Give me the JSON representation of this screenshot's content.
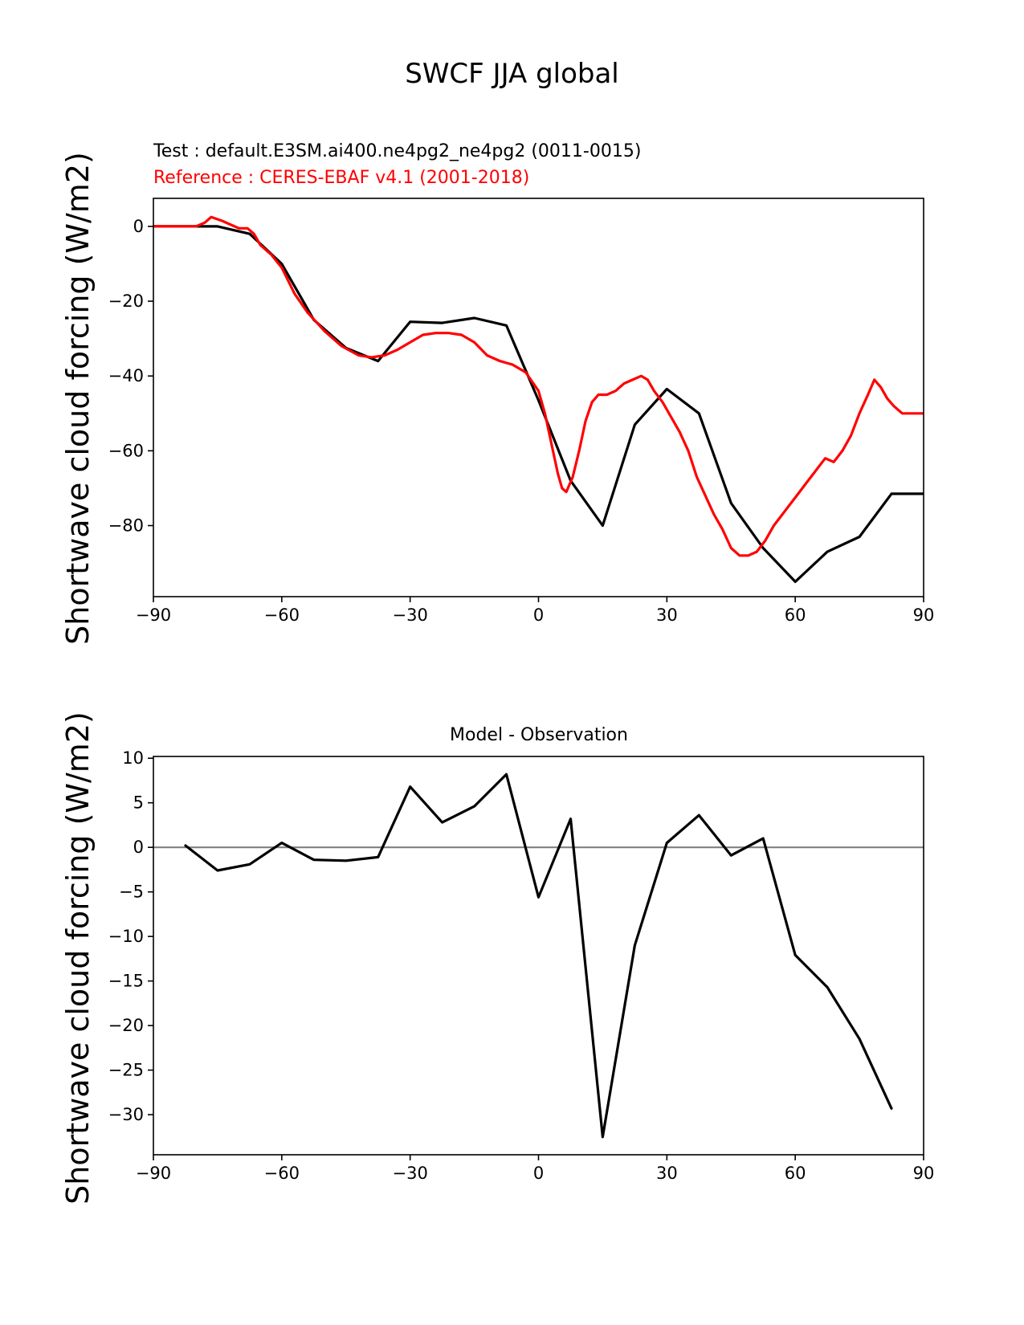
{
  "figure": {
    "title": "SWCF JJA global"
  },
  "chart_data": [
    {
      "type": "line",
      "test_label": "Test : default.E3SM.ai400.ne4pg2_ne4pg2 (0011-0015)",
      "reference_label": "Reference : CERES-EBAF v4.1 (2001-2018)",
      "ylabel": "Shortwave cloud forcing (W/m2)",
      "xlim": [
        -90,
        90
      ],
      "ylim": [
        -99,
        7.5
      ],
      "xticks": [
        -90,
        -60,
        -30,
        0,
        30,
        60,
        90
      ],
      "yticks": [
        -80,
        -60,
        -40,
        -20,
        0
      ],
      "xtick_labels": [
        "−90",
        "−60",
        "−30",
        "0",
        "30",
        "60",
        "90"
      ],
      "ytick_labels": [
        "−80",
        "−60",
        "−40",
        "−20",
        "0"
      ],
      "series": [
        {
          "name": "Test : default.E3SM.ai400.ne4pg2_ne4pg2 (0011-0015)",
          "color": "#000000",
          "x": [
            -90,
            -82.5,
            -75,
            -67.5,
            -60,
            -52.5,
            -45,
            -37.5,
            -30,
            -22.5,
            -15,
            -7.5,
            0,
            7.5,
            15,
            22.5,
            30,
            37.5,
            45,
            52.5,
            60,
            67.5,
            75,
            82.5,
            90
          ],
          "y": [
            0,
            0,
            0,
            -2,
            -10,
            -25,
            -32.5,
            -36,
            -25.5,
            -25.8,
            -24.5,
            -26.5,
            -46.5,
            -68,
            -80,
            -53,
            -43.5,
            -50,
            -74,
            -86,
            -95,
            -87,
            -83,
            -71.5,
            -71.5
          ]
        },
        {
          "name": "Reference : CERES-EBAF v4.1 (2001-2018)",
          "color": "#ff0000",
          "x": [
            -90,
            -86,
            -82,
            -80,
            -78,
            -76.5,
            -74,
            -72,
            -70,
            -68,
            -66.5,
            -65,
            -62.5,
            -60,
            -57,
            -54,
            -50,
            -46,
            -42,
            -39,
            -36,
            -33,
            -30,
            -27,
            -24,
            -21,
            -18,
            -15,
            -12,
            -9,
            -6,
            -3,
            0,
            1.5,
            3,
            4.5,
            5.5,
            6.5,
            8,
            9.5,
            11,
            12.5,
            14,
            16,
            18,
            20,
            22,
            24,
            25.5,
            27,
            29,
            31,
            33,
            35,
            37,
            39,
            41,
            43,
            45,
            47,
            49,
            51,
            53,
            55,
            57,
            59,
            61,
            63,
            65,
            67,
            69,
            71,
            73,
            75,
            77,
            78.5,
            80,
            81.5,
            83,
            85,
            87,
            89,
            90
          ],
          "y": [
            0,
            0,
            0,
            0,
            1,
            2.5,
            1.5,
            0.5,
            -0.5,
            -0.5,
            -2,
            -5,
            -7.5,
            -11,
            -18,
            -23,
            -28,
            -32,
            -34.5,
            -35,
            -34.5,
            -33,
            -31,
            -29,
            -28.5,
            -28.5,
            -29,
            -31,
            -34.5,
            -36,
            -37,
            -39,
            -44,
            -50,
            -58,
            -66,
            -70,
            -71,
            -67,
            -60,
            -52,
            -47,
            -45,
            -45,
            -44,
            -42,
            -41,
            -40,
            -41,
            -44,
            -47,
            -51,
            -55,
            -60,
            -67,
            -72,
            -77,
            -81,
            -86,
            -88,
            -88,
            -87,
            -84,
            -80,
            -77,
            -74,
            -71,
            -68,
            -65,
            -62,
            -63,
            -60,
            -56,
            -50,
            -45,
            -41,
            -43,
            -46,
            -48,
            -50,
            -50,
            -50,
            -50
          ]
        }
      ]
    },
    {
      "type": "line",
      "title": "Model - Observation",
      "ylabel": "Shortwave cloud forcing (W/m2)",
      "xlim": [
        -90,
        90
      ],
      "ylim": [
        -34.5,
        10.2
      ],
      "xticks": [
        -90,
        -60,
        -30,
        0,
        30,
        60,
        90
      ],
      "yticks": [
        -30,
        -25,
        -20,
        -15,
        -10,
        -5,
        0,
        5,
        10
      ],
      "xtick_labels": [
        "−90",
        "−60",
        "−30",
        "0",
        "30",
        "60",
        "90"
      ],
      "ytick_labels": [
        "−30",
        "−25",
        "−20",
        "−15",
        "−10",
        "−5",
        "0",
        "5",
        "10"
      ],
      "zero_line_color": "#808080",
      "series": [
        {
          "color": "#000000",
          "x": [
            -82.5,
            -75,
            -67.5,
            -60,
            -52.5,
            -45,
            -37.5,
            -30,
            -22.5,
            -15,
            -7.5,
            0,
            7.5,
            15,
            22.5,
            30,
            37.5,
            45,
            52.5,
            60,
            67.5,
            75,
            82.5
          ],
          "y": [
            0.2,
            -2.6,
            -1.9,
            0.5,
            -1.4,
            -1.5,
            -1.1,
            6.8,
            2.8,
            4.6,
            8.2,
            -5.6,
            3.2,
            -32.5,
            -11,
            0.5,
            3.6,
            -0.9,
            1.0,
            -12.1,
            -15.7,
            -21.5,
            -29.3
          ]
        }
      ]
    }
  ]
}
